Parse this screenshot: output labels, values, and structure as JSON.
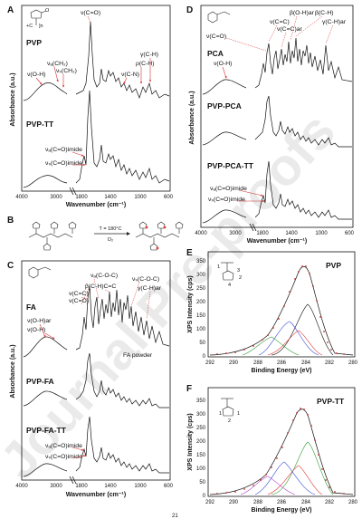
{
  "panel_A": {
    "letter": "A",
    "y_axis_label": "Absorbance (a.u.)",
    "x_axis_label": "Wavenumber (cm⁻¹)",
    "ticks": [
      "4000",
      "3000",
      "1800",
      "1400",
      "1000",
      "600"
    ],
    "spectra": [
      {
        "name": "PVP",
        "annotations": [
          "ν(C=O)",
          "ν(O-H)",
          "νₐ(CH₂)",
          "νₛ(CH₂)",
          "ν(C-N)",
          "ρ(C-H)",
          "γ(C-H)"
        ]
      },
      {
        "name": "PVP-TT",
        "annotations": [
          "νₐ(C=O)imide",
          "νₛ(C=O)imide"
        ]
      }
    ]
  },
  "panel_B": {
    "letter": "B",
    "conditions": [
      "T = 180°C",
      "O₂"
    ]
  },
  "panel_C": {
    "letter": "C",
    "y_axis_label": "Absorbance (a.u.)",
    "x_axis_label": "Wavenumber (cm⁻¹)",
    "ticks": [
      "4000",
      "3000",
      "1800",
      "1400",
      "1000",
      "600"
    ],
    "note": "FA powder",
    "spectra": [
      {
        "name": "FA",
        "annotations": [
          "νₐ(C-O-C)",
          "νₛ(C-O-C)",
          "β(C-H)C=C",
          "γ(C-H)ar",
          "ν(C=C)",
          "ν(C=O)",
          "ν(O-H)ar",
          "ν(O-H)"
        ]
      },
      {
        "name": "PVP-FA",
        "annotations": []
      },
      {
        "name": "PVP-FA-TT",
        "annotations": [
          "νₐ(C=O)imide",
          "νₛ(C=O)imide"
        ]
      }
    ]
  },
  "panel_D": {
    "letter": "D",
    "y_axis_label": "Absorbance (a.u.)",
    "x_axis_label": "Wavenumber (cm⁻¹)",
    "ticks": [
      "4000",
      "3000",
      "1800",
      "1400",
      "1000",
      "600"
    ],
    "spectra": [
      {
        "name": "PCA",
        "annotations": [
          "β(O-H)ar",
          "β(C-H)",
          "ν(C=C)",
          "ν(C=C)ar",
          "γ(C-H)ar",
          "ν(C=O)",
          "ν(O-H)"
        ]
      },
      {
        "name": "PVP-PCA",
        "annotations": []
      },
      {
        "name": "PVP-PCA-TT",
        "annotations": [
          "νₐ(C=O)imide",
          "νₛ(C=O)imide"
        ]
      }
    ]
  },
  "panel_E": {
    "letter": "E",
    "title": "PVP",
    "y_axis_label": "XPS Intensity (cps)",
    "x_axis_label": "Binding Energy (eV)",
    "y_ticks": [
      "0",
      "50",
      "100",
      "150",
      "200",
      "250",
      "300",
      "350"
    ],
    "x_ticks": [
      "292",
      "290",
      "288",
      "286",
      "284",
      "282",
      "280"
    ]
  },
  "panel_F": {
    "letter": "F",
    "title": "PVP-TT",
    "y_axis_label": "XPS Intensity (cps)",
    "x_axis_label": "Binding Energy (eV)",
    "y_ticks": [
      "0",
      "50",
      "100",
      "150",
      "200",
      "250",
      "300",
      "350"
    ],
    "x_ticks": [
      "292",
      "290",
      "288",
      "286",
      "284",
      "282",
      "280"
    ]
  },
  "watermark": "Journal Pre-proofs",
  "page_number": "21",
  "colors": {
    "fit_black": "#111111",
    "peak_red": "#e23b3b",
    "peak_blue": "#3a4fd8",
    "peak_green": "#2f9a2f",
    "peak_purple": "#b03bc8",
    "arrow_red": "#d83030"
  }
}
